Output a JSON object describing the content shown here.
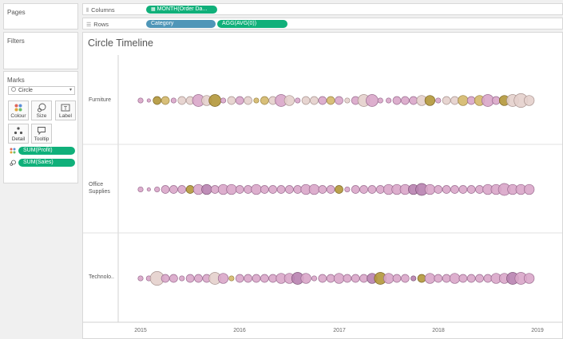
{
  "left_panel": {
    "pages_title": "Pages",
    "filters_title": "Filters",
    "marks_title": "Marks",
    "mark_type": "Circle",
    "buttons": [
      {
        "key": "colour",
        "label": "Colour",
        "icon": "colour-dots-icon"
      },
      {
        "key": "size",
        "label": "Size",
        "icon": "size-icon"
      },
      {
        "key": "label",
        "label": "Label",
        "icon": "label-icon"
      },
      {
        "key": "detail",
        "label": "Detail",
        "icon": "detail-icon"
      },
      {
        "key": "tooltip",
        "label": "Tooltip",
        "icon": "tooltip-icon"
      }
    ],
    "mark_fields": [
      {
        "label": "SUM(Profit)",
        "icon": "colour-dots-icon"
      },
      {
        "label": "SUM(Sales)",
        "icon": "size-icon"
      }
    ]
  },
  "shelves": {
    "columns_label": "Columns",
    "rows_label": "Rows",
    "columns_pill": "MONTH(Order Da...",
    "rows_pills": [
      "Category",
      "AGG(AVG(0))"
    ]
  },
  "viz": {
    "title": "Circle Timeline",
    "x_ticks": [
      "2015",
      "2016",
      "2017",
      "2018",
      "2019"
    ],
    "row_labels": [
      [
        "Furniture"
      ],
      [
        "Office",
        "Supplies"
      ],
      [
        "Technolo.."
      ]
    ]
  },
  "colors": {
    "pill_green": "#10b07a",
    "pill_blue": "#4f96b8",
    "circle_pink": "#d9a6c9",
    "circle_purple": "#b882b0",
    "circle_gold": "#d4b86a",
    "circle_olive": "#b2973a",
    "circle_beige": "#e4d0cc"
  },
  "chart_data": {
    "type": "scatter",
    "title": "Circle Timeline",
    "x_axis": "MONTH(Order Date)",
    "x_ticks": [
      "2015",
      "2016",
      "2017",
      "2018",
      "2019"
    ],
    "categories": [
      "Furniture",
      "Office Supplies",
      "Technolo.."
    ],
    "size_measure": "SUM(Sales)",
    "color_measure": "SUM(Profit)",
    "series": [
      {
        "name": "Furniture",
        "months": [
          0,
          1,
          2,
          3,
          4,
          5,
          6,
          7,
          8,
          9,
          10,
          11,
          12,
          13,
          14,
          15,
          16,
          17,
          18,
          19,
          20,
          21,
          22,
          23,
          24,
          25,
          26,
          27,
          28,
          29,
          30,
          31,
          32,
          33,
          34,
          35,
          36,
          37,
          38,
          39,
          40,
          41,
          42,
          43,
          44,
          45,
          46,
          47
        ],
        "sizes": [
          2,
          1,
          3,
          3,
          2,
          3,
          3,
          5,
          4,
          5,
          2,
          3,
          3,
          3,
          2,
          3,
          3,
          5,
          4,
          2,
          3,
          3,
          3,
          3,
          3,
          2,
          3,
          5,
          5,
          2,
          2,
          3,
          3,
          3,
          4,
          4,
          2,
          3,
          3,
          4,
          3,
          4,
          5,
          3,
          4,
          5,
          6,
          4
        ],
        "colors": [
          "p",
          "p",
          "o",
          "g",
          "p",
          "b",
          "b",
          "p",
          "b",
          "o",
          "p",
          "b",
          "p",
          "b",
          "g",
          "g",
          "b",
          "p",
          "b",
          "p",
          "b",
          "b",
          "p",
          "g",
          "p",
          "b",
          "p",
          "b",
          "p",
          "p",
          "p",
          "p",
          "p",
          "p",
          "b",
          "o",
          "p",
          "b",
          "b",
          "g",
          "p",
          "g",
          "p",
          "p",
          "o",
          "b",
          "b",
          "b"
        ]
      },
      {
        "name": "Office Supplies",
        "months": [
          0,
          1,
          2,
          3,
          4,
          5,
          6,
          7,
          8,
          9,
          10,
          11,
          12,
          13,
          14,
          15,
          16,
          17,
          18,
          19,
          20,
          21,
          22,
          23,
          24,
          25,
          26,
          27,
          28,
          29,
          30,
          31,
          32,
          33,
          34,
          35,
          36,
          37,
          38,
          39,
          40,
          41,
          42,
          43,
          44,
          45,
          46,
          47
        ],
        "sizes": [
          2,
          1,
          2,
          3,
          3,
          3,
          3,
          4,
          4,
          3,
          4,
          4,
          3,
          3,
          4,
          3,
          3,
          3,
          3,
          3,
          4,
          4,
          3,
          3,
          3,
          2,
          3,
          3,
          3,
          3,
          4,
          4,
          4,
          4,
          5,
          4,
          3,
          3,
          3,
          3,
          3,
          3,
          4,
          4,
          5,
          4,
          4,
          4
        ],
        "colors": [
          "p",
          "p",
          "p",
          "p",
          "p",
          "p",
          "o",
          "p",
          "v",
          "p",
          "p",
          "p",
          "p",
          "p",
          "p",
          "p",
          "p",
          "p",
          "p",
          "p",
          "p",
          "p",
          "p",
          "p",
          "o",
          "p",
          "p",
          "p",
          "p",
          "p",
          "p",
          "p",
          "p",
          "v",
          "v",
          "p",
          "p",
          "p",
          "p",
          "p",
          "p",
          "p",
          "p",
          "p",
          "p",
          "p",
          "p",
          "p"
        ]
      },
      {
        "name": "Technolo..",
        "months": [
          0,
          1,
          2,
          3,
          4,
          5,
          6,
          7,
          8,
          9,
          10,
          11,
          12,
          13,
          14,
          15,
          16,
          17,
          18,
          19,
          20,
          21,
          22,
          23,
          24,
          25,
          26,
          27,
          28,
          29,
          30,
          31,
          32,
          33,
          34,
          35,
          36,
          37,
          38,
          39,
          40,
          41,
          42,
          43,
          44,
          45,
          46,
          47
        ],
        "sizes": [
          2,
          2,
          6,
          3,
          3,
          2,
          3,
          3,
          3,
          5,
          4,
          2,
          3,
          3,
          3,
          3,
          3,
          4,
          4,
          5,
          4,
          2,
          3,
          3,
          4,
          3,
          3,
          3,
          4,
          5,
          4,
          3,
          3,
          2,
          3,
          4,
          3,
          3,
          4,
          3,
          3,
          3,
          3,
          4,
          4,
          5,
          5,
          4
        ],
        "colors": [
          "p",
          "p",
          "b",
          "p",
          "p",
          "p",
          "p",
          "p",
          "p",
          "b",
          "p",
          "g",
          "p",
          "p",
          "p",
          "p",
          "p",
          "p",
          "p",
          "v",
          "p",
          "p",
          "p",
          "p",
          "p",
          "p",
          "p",
          "p",
          "v",
          "o",
          "p",
          "p",
          "p",
          "v",
          "o",
          "p",
          "p",
          "p",
          "p",
          "p",
          "p",
          "p",
          "p",
          "p",
          "p",
          "v",
          "p",
          "p"
        ]
      }
    ]
  }
}
